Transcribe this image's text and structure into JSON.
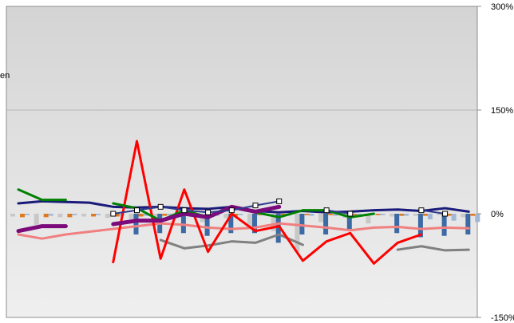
{
  "chart_data": {
    "type": "line",
    "title": "",
    "xlabel": "",
    "ylabel": "",
    "ylim": [
      -150,
      300
    ],
    "y_ticks": [
      {
        "value": 300,
        "label": "300%"
      },
      {
        "value": 150,
        "label": "150%"
      },
      {
        "value": 0,
        "label": "0%"
      },
      {
        "value": -150,
        "label": "-150%"
      }
    ],
    "y_axis_position": "right",
    "gridlines": [
      150
    ],
    "background": "gradient gray",
    "left_fragment_text": "en",
    "x_count": 20,
    "bars": [
      {
        "color": "#c8c8c8",
        "values": [
          -4,
          -16,
          -5,
          -4,
          -6,
          -8,
          -6,
          -3,
          -12,
          -6,
          -18,
          -25,
          -55,
          -12,
          -6,
          -14,
          -4,
          -3,
          -2,
          -5
        ]
      },
      {
        "color": "#3c6aa5",
        "values": [
          0,
          0,
          0,
          0,
          0,
          -30,
          -28,
          -28,
          -32,
          -28,
          -28,
          -42,
          -30,
          -30,
          -22,
          0,
          -28,
          -34,
          -32,
          -30
        ]
      },
      {
        "color": "#e07820",
        "values": [
          -5,
          -5,
          -5,
          -4,
          -4,
          -4,
          -3,
          -3,
          -3,
          -3,
          -2,
          -2,
          -2,
          -2,
          -2,
          -2,
          -3,
          -3,
          -3,
          -3
        ]
      },
      {
        "color": "#9fb8d8",
        "values": [
          -2,
          -3,
          -2,
          -2,
          -3,
          -3,
          -2,
          -2,
          -3,
          -2,
          -2,
          -3,
          -3,
          -3,
          -2,
          -2,
          -3,
          -8,
          -10,
          -12
        ]
      }
    ],
    "series": [
      {
        "color": "#1a1a7a",
        "width": 3,
        "marker": false,
        "values": [
          15,
          18,
          17,
          16,
          10,
          9,
          10,
          8,
          7,
          10,
          4,
          2,
          4,
          2,
          3,
          5,
          6,
          4,
          8,
          3
        ]
      },
      {
        "color": "#f08080",
        "width": 3,
        "marker": false,
        "values": [
          -30,
          -36,
          -30,
          -26,
          -22,
          -18,
          -14,
          -16,
          -20,
          -22,
          -20,
          -14,
          -17,
          -20,
          -24,
          -20,
          -19,
          -22,
          -20,
          -21
        ]
      },
      {
        "color": "#808080",
        "width": 3,
        "marker": false,
        "values": [
          null,
          null,
          null,
          null,
          null,
          null,
          -38,
          -50,
          -46,
          -40,
          -42,
          -30,
          -45,
          null,
          null,
          null,
          -52,
          -47,
          -53,
          -52
        ]
      },
      {
        "color": "#ff0000",
        "width": 3,
        "marker": false,
        "values": [
          null,
          null,
          null,
          null,
          -70,
          105,
          -65,
          35,
          -55,
          0,
          -25,
          -18,
          -68,
          -40,
          -28,
          -72,
          -42,
          -30,
          null,
          null
        ]
      },
      {
        "color": "#008000",
        "width": 3,
        "marker": false,
        "values": [
          35,
          20,
          20,
          null,
          15,
          8,
          -10,
          5,
          -5,
          10,
          2,
          -5,
          5,
          5,
          -5,
          0,
          null,
          null,
          null,
          null
        ]
      },
      {
        "color": "#7b0a7b",
        "width": 5,
        "marker": false,
        "values": [
          -25,
          -18,
          -18,
          null,
          -15,
          -10,
          -10,
          0,
          -5,
          10,
          3,
          10,
          null,
          null,
          null,
          null,
          null,
          null,
          null,
          null
        ]
      },
      {
        "color": "#2e3b8e",
        "width": 2,
        "marker": true,
        "values": [
          null,
          null,
          null,
          null,
          0,
          5,
          10,
          5,
          2,
          5,
          12,
          18,
          null,
          5,
          0,
          null,
          null,
          5,
          0,
          null
        ]
      }
    ]
  }
}
